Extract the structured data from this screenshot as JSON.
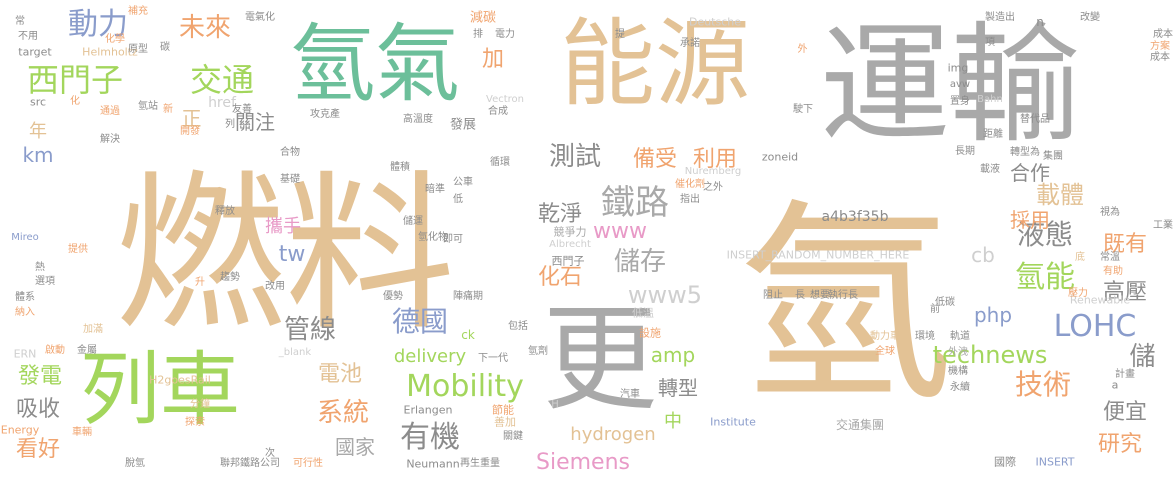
{
  "palette": {
    "tan": "#e3c295",
    "gray": "#a9a9a9",
    "teal": "#6cbf9a",
    "green": "#a3d65c",
    "blue": "#8a9ccb",
    "orange": "#f0a46f",
    "pink": "#e89ac7",
    "dark": "#8c8c8c",
    "light": "#cfcfcf"
  },
  "words": [
    "燃料",
    "氫",
    "運輸",
    "能源",
    "氫氣",
    "列車",
    "更",
    "鐵路",
    "動力",
    "西門子",
    "交通",
    "未來",
    "Mobility",
    "有機",
    "德國",
    "LOHC",
    "氫能",
    "技術",
    "儲存",
    "www5",
    "測試",
    "備受",
    "利用",
    "乾淨",
    "化石",
    "www",
    "液態",
    "載體",
    "合作",
    "採用",
    "既有",
    "高壓",
    "儲",
    "便宜",
    "研究",
    "Siemens",
    "hydrogen",
    "delivery",
    "technews",
    "系統",
    "電池",
    "管線",
    "發電",
    "吸收",
    "看好",
    "國家",
    "轉型",
    "amp",
    "中",
    "php",
    "cb",
    "tw",
    "km",
    "年",
    "正",
    "加",
    "關注",
    "攜手",
    "a4b3f35b",
    "href",
    "img",
    "zoneid",
    "INSERT_RANDOM_NUMBER_HERE",
    "Renewable",
    "Energy",
    "H2goesRail",
    "ERN",
    "Helmholtz",
    "target",
    "src",
    "Deutsche",
    "Bahn",
    "avw",
    "Vectron",
    "Nuremberg",
    "Albrecht",
    "Erlangen",
    "Institute",
    "Neumann",
    "INSERT",
    "Mireo",
    "_blank",
    "ck",
    "n",
    "a",
    "H",
    "減碳",
    "西門子",
    "交通集團",
    "可行性",
    "聯邦鐵路公司",
    "國際",
    "工業",
    "成本",
    "方案",
    "節能",
    "善加",
    "競爭力",
    "設施",
    "低溫",
    "下一代",
    "包括",
    "氫劑",
    "全球",
    "動力車",
    "環境",
    "軌道",
    "機構",
    "外洩",
    "永續",
    "重量",
    "關鍵",
    "再生",
    "次",
    "脫氫",
    "車輛",
    "探索",
    "分鐘",
    "金屬",
    "啟動",
    "加滿",
    "體系",
    "納入",
    "選項",
    "熱",
    "提供",
    "趨勢",
    "升",
    "釋放",
    "改用",
    "優勢",
    "陣痛期",
    "阻止",
    "長",
    "想要",
    "執行長",
    "低碳",
    "常溫",
    "有助",
    "壓力",
    "計畫",
    "前",
    "底",
    "視為",
    "集團",
    "載液",
    "轉型為",
    "長期",
    "距離",
    "替代品",
    "置身",
    "駛下",
    "外",
    "承諾",
    "項",
    "改變",
    "製造出",
    "成本",
    "提",
    "電力",
    "排",
    "補充",
    "常",
    "電氣化",
    "不用",
    "化學",
    "原型",
    "碳",
    "化",
    "通過",
    "氫站",
    "新",
    "友善",
    "列",
    "攻克產",
    "開發",
    "解決",
    "合物",
    "高溫度",
    "發展",
    "合成",
    "循環",
    "暗準",
    "儲運",
    "氫化物",
    "低",
    "即可",
    "公車",
    "催化劑",
    "指出",
    "體積",
    "基礎",
    "之外",
    "汽車"
  ]
}
